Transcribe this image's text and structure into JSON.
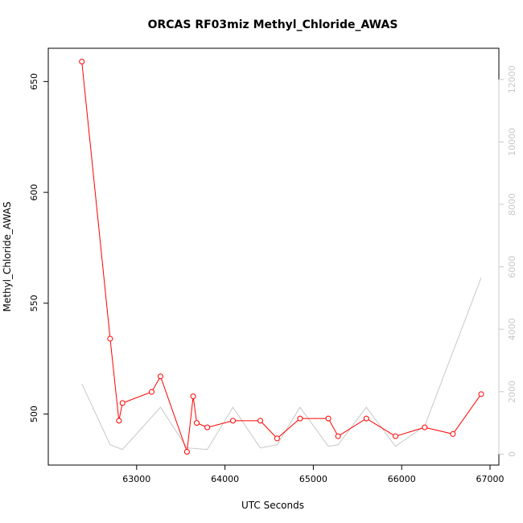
{
  "chart_data": {
    "type": "line",
    "title": "ORCAS RF03miz Methyl_Chloride_AWAS",
    "xlabel": "UTC Seconds",
    "ylabel": "Methyl_Chloride_AWAS",
    "xlim": [
      62000,
      67100
    ],
    "ylim": [
      477,
      665
    ],
    "x_ticks": [
      63000,
      64000,
      65000,
      66000,
      67000
    ],
    "y_ticks": [
      500,
      550,
      600,
      650
    ],
    "y2lim": [
      -350,
      13000
    ],
    "y2_ticks": [
      0,
      2000,
      4000,
      6000,
      8000,
      10000,
      12000
    ],
    "grid": false,
    "legend": "none",
    "series": [
      {
        "axis": "left",
        "color": "#ff0000",
        "marker": "circle",
        "x": [
          62380,
          62700,
          62800,
          62840,
          63170,
          63270,
          63570,
          63640,
          63680,
          63800,
          64090,
          64400,
          64590,
          64850,
          65170,
          65280,
          65600,
          65930,
          66260,
          66580,
          66900
        ],
        "y": [
          659,
          534,
          497,
          505,
          510,
          517,
          483,
          508,
          496,
          494,
          497,
          497,
          489,
          498,
          498,
          490,
          498,
          490,
          494,
          491,
          509
        ]
      },
      {
        "axis": "right",
        "color": "#c8c8c8",
        "marker": "none",
        "x": [
          62380,
          62700,
          62840,
          63270,
          63570,
          63800,
          64090,
          64400,
          64590,
          64850,
          65170,
          65280,
          65600,
          65930,
          66260,
          66900
        ],
        "y": [
          2250,
          300,
          150,
          1500,
          200,
          150,
          1500,
          200,
          300,
          1500,
          250,
          300,
          1500,
          250,
          900,
          5650
        ]
      }
    ]
  }
}
